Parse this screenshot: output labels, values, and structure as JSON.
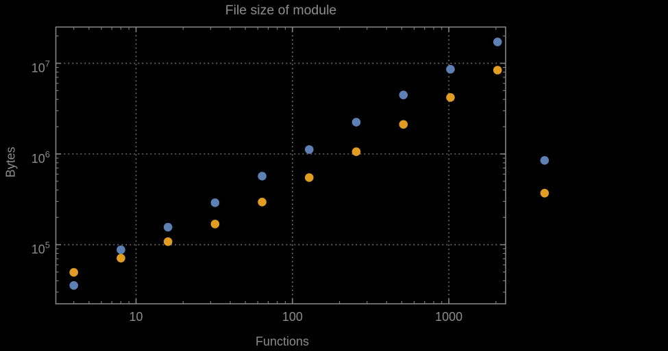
{
  "window": {
    "background": "#000000"
  },
  "chart_data": {
    "type": "scatter",
    "title": "File size of module",
    "xlabel": "Functions",
    "ylabel": "Bytes",
    "x_scale": "log",
    "y_scale": "log",
    "xlim": [
      3.07,
      2307
    ],
    "ylim": [
      22300,
      25100000
    ],
    "grid": {
      "show": true,
      "style": "dotted",
      "at": "decades",
      "color": "#757575"
    },
    "legend": null,
    "x_ticks": [
      {
        "value": 10,
        "label": "10"
      },
      {
        "value": 100,
        "label": "100"
      },
      {
        "value": 1000,
        "label": "1000"
      }
    ],
    "y_ticks": [
      {
        "value": 100000,
        "label_base": "10",
        "label_exp": "5"
      },
      {
        "value": 1000000,
        "label_base": "10",
        "label_exp": "6"
      },
      {
        "value": 10000000,
        "label_base": "10",
        "label_exp": "7"
      }
    ],
    "minor_tick_mantissas": [
      2,
      3,
      4,
      5,
      6,
      7,
      8,
      9
    ],
    "series": [
      {
        "name": "series-blue",
        "color": "#5e81b5",
        "x": [
          4,
          8,
          16,
          32,
          64,
          128,
          256,
          512,
          1024,
          2048,
          4096
        ],
        "y": [
          35500,
          88000,
          156000,
          290000,
          570000,
          1120000,
          2240000,
          4470000,
          8600000,
          17200000,
          850000
        ]
      },
      {
        "name": "series-orange",
        "color": "#e19c24",
        "x": [
          4,
          8,
          16,
          32,
          64,
          128,
          256,
          512,
          1024,
          2048,
          4096
        ],
        "y": [
          49500,
          71000,
          108000,
          169000,
          295000,
          550000,
          1060000,
          2120000,
          4200000,
          8400000,
          370000
        ]
      }
    ],
    "styles": {
      "text_color": "#8c8c8c",
      "frame_color": "#848484",
      "grid_color": "#757575",
      "point_radius": 6.3
    }
  }
}
